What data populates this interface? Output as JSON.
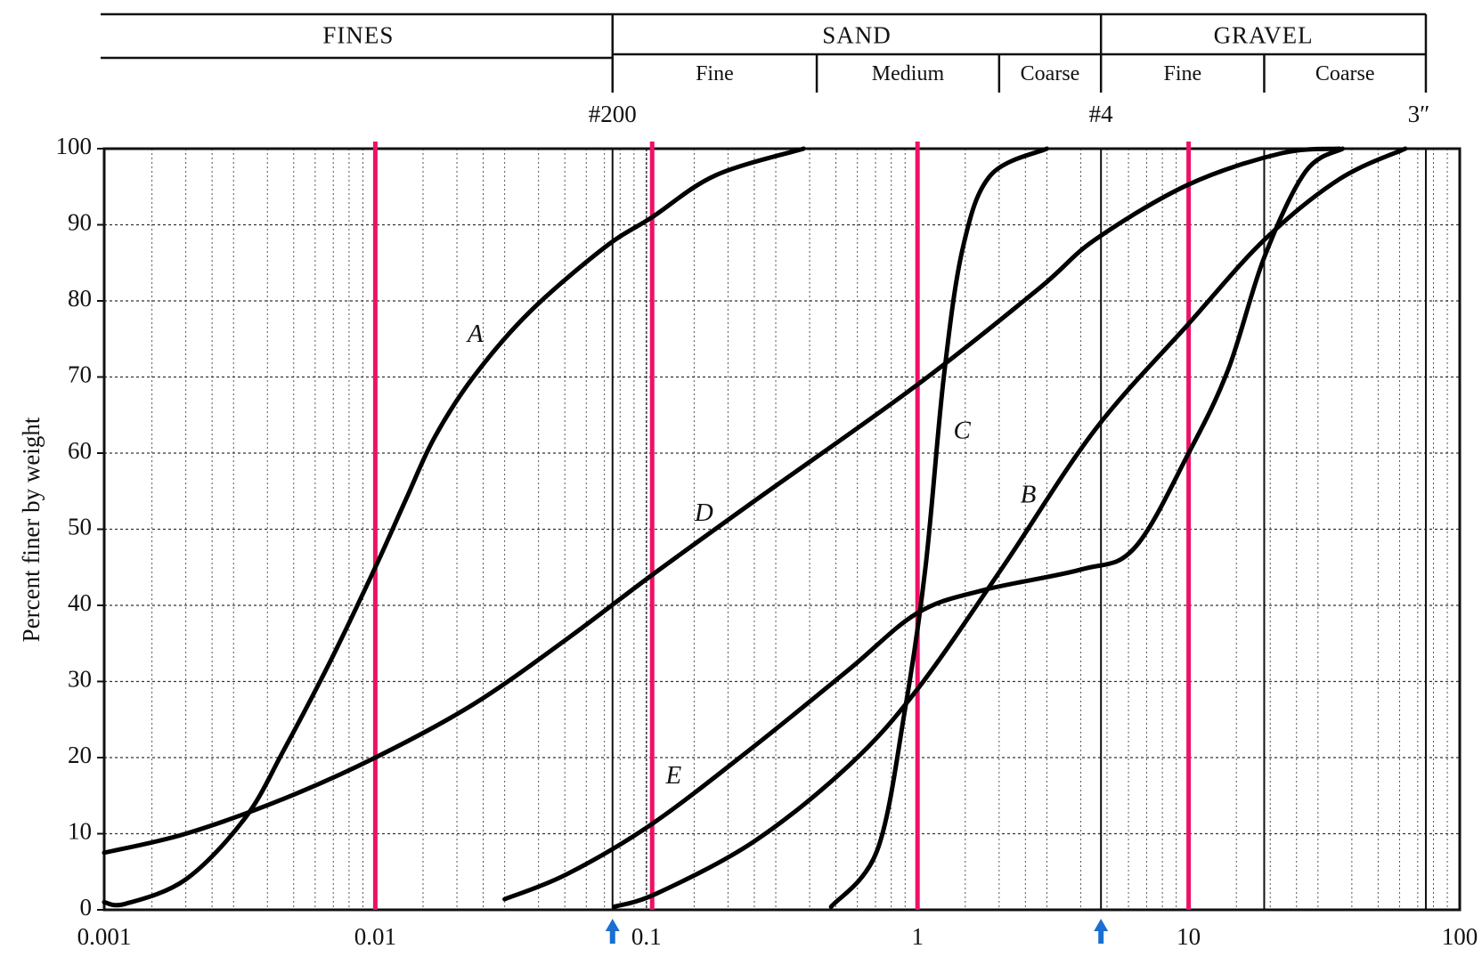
{
  "chart_data": {
    "type": "line",
    "y_label": "Percent finer by weight",
    "xscale": "log",
    "xlim": [
      0.001,
      100
    ],
    "xticks": [
      0.001,
      0.01,
      0.1,
      1,
      10,
      100
    ],
    "ylim": [
      0,
      100
    ],
    "yticks": [
      0,
      10,
      20,
      30,
      40,
      50,
      60,
      70,
      80,
      90,
      100
    ],
    "grid": true,
    "header": {
      "groups": [
        {
          "label": "FINES",
          "from": 0.001,
          "to": 0.075
        },
        {
          "label": "SAND",
          "from": 0.075,
          "to": 4.75
        },
        {
          "label": "GRAVEL",
          "from": 4.75,
          "to": 75
        }
      ],
      "subgroups": [
        {
          "label": "Fine",
          "from": 0.075,
          "to": 0.425
        },
        {
          "label": "Medium",
          "from": 0.425,
          "to": 2
        },
        {
          "label": "Coarse",
          "from": 2,
          "to": 4.75
        },
        {
          "label": "Fine",
          "from": 4.75,
          "to": 19
        },
        {
          "label": "Coarse",
          "from": 19,
          "to": 75
        }
      ]
    },
    "sieves": [
      {
        "label": "#200",
        "value": 0.075
      },
      {
        "label": "#4",
        "value": 4.75
      },
      {
        "label": "3″",
        "value": 75
      }
    ],
    "reference_lines": {
      "color": "#ee1166",
      "values": [
        0.01,
        0.105,
        1,
        10
      ]
    },
    "arrow_color": "#1a6fd0",
    "series": [
      {
        "name": "A",
        "color": "#000000",
        "x": [
          0.001,
          0.0012,
          0.002,
          0.0033,
          0.0046,
          0.0069,
          0.01,
          0.013,
          0.0165,
          0.023,
          0.037,
          0.07,
          0.105,
          0.18,
          0.38
        ],
        "values": [
          1,
          0.8,
          4,
          12,
          21,
          33,
          45,
          54,
          62,
          70,
          78.5,
          87,
          91,
          96.5,
          100
        ]
      },
      {
        "name": "B",
        "color": "#000000",
        "x": [
          0.076,
          0.11,
          0.25,
          0.56,
          1,
          2.06,
          4.5,
          10,
          19,
          36,
          63
        ],
        "values": [
          0.4,
          2.2,
          9,
          19,
          29,
          45,
          63,
          77,
          88,
          96,
          100
        ]
      },
      {
        "name": "C",
        "color": "#000000",
        "x": [
          0.48,
          0.71,
          0.9,
          1.07,
          1.25,
          1.47,
          1.86,
          3
        ],
        "values": [
          0.4,
          7.8,
          26.4,
          45,
          70,
          87,
          96.5,
          100
        ]
      },
      {
        "name": "D",
        "color": "#000000",
        "x": [
          0.001,
          0.002,
          0.0046,
          0.01,
          0.023,
          0.051,
          0.105,
          0.25,
          1,
          2.8,
          4.5,
          10,
          22,
          36
        ],
        "values": [
          7.5,
          10,
          14.6,
          20,
          27,
          35.6,
          44,
          53.7,
          69,
          81.6,
          88,
          95.3,
          99.4,
          100
        ]
      },
      {
        "name": "E",
        "color": "#000000",
        "x": [
          0.03,
          0.051,
          0.105,
          0.25,
          0.56,
          1,
          1.75,
          4,
          6.3,
          10,
          14,
          19,
          27,
          37
        ],
        "values": [
          1.4,
          4.7,
          11.3,
          21.5,
          31.6,
          39,
          42,
          44.7,
          47.5,
          60,
          71,
          85.7,
          97,
          100
        ]
      }
    ]
  }
}
